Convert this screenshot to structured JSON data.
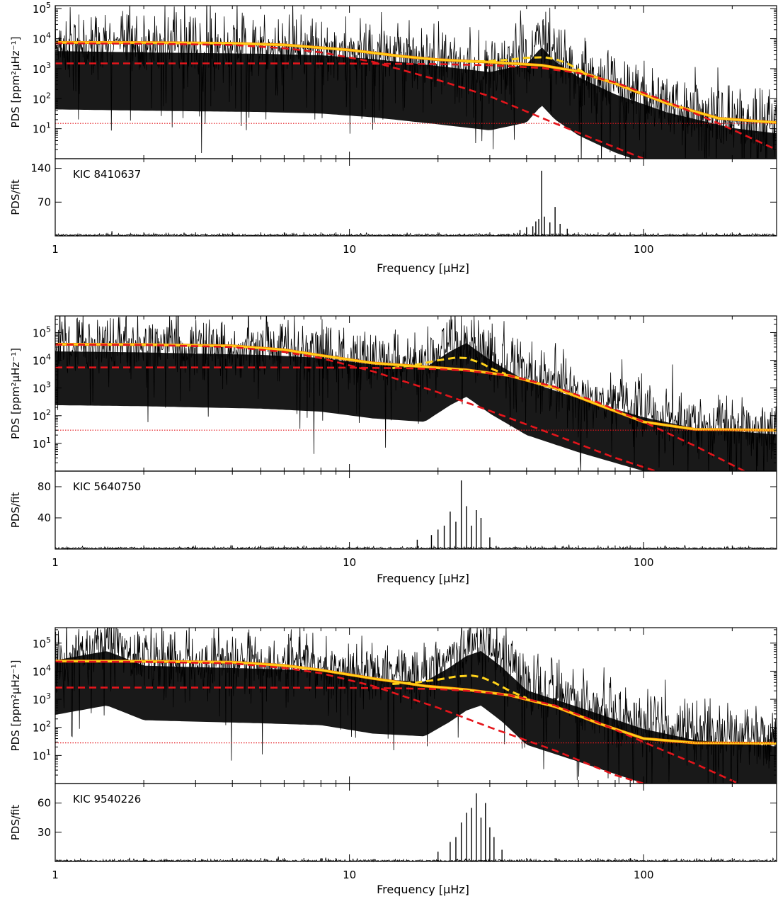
{
  "chart_data": [
    {
      "type": "line",
      "panel_label": "KIC 8410637",
      "xscale": "log",
      "xlim": [
        1,
        283
      ],
      "xticks": [
        "1",
        "10",
        "100"
      ],
      "xlabel": "Frequency [μHz]",
      "top": {
        "ylabel": "PDS [ppm²μHz⁻¹]",
        "yscale": "log",
        "ylim": [
          1,
          150000
        ],
        "yticks": [
          "10^1",
          "10^2",
          "10^3",
          "10^4",
          "10^5"
        ],
        "series": [
          {
            "style": "black-spectrum",
            "x": [
              1,
              2,
              3,
              5,
              8,
              12,
              20,
              30,
              40,
              45,
              50,
              60,
              80,
              120,
              200,
              283
            ],
            "y": [
              11000,
              10000,
              9500,
              9000,
              8000,
              6000,
              3500,
              2200,
              4000,
              15000,
              5000,
              1500,
              400,
              100,
              30,
              20
            ]
          },
          {
            "style": "yellow-solid",
            "x": [
              1,
              2,
              4,
              6,
              10,
              15,
              20,
              30,
              45,
              60,
              80,
              120,
              180,
              283
            ],
            "y": [
              7500,
              7400,
              7000,
              6200,
              4200,
              2600,
              2000,
              1650,
              1300,
              800,
              320,
              70,
              22,
              16
            ]
          },
          {
            "style": "yellow-dashed",
            "x": [
              25,
              30,
              35,
              40,
              46,
              50,
              55,
              60,
              65,
              70
            ],
            "y": [
              1700,
              1800,
              2000,
              2300,
              2400,
              2100,
              1500,
              950,
              600,
              450
            ]
          },
          {
            "style": "red-dashed",
            "x": [
              1,
              2,
              4,
              6,
              8,
              12,
              20,
              30,
              50,
              70,
              100
            ],
            "y": [
              7000,
              6800,
              6200,
              4800,
              3500,
              1700,
              420,
              120,
              15,
              4,
              1
            ]
          },
          {
            "style": "red-dashed",
            "x": [
              1,
              5,
              10,
              20,
              30,
              45,
              60,
              80,
              120,
              180,
              283
            ],
            "y": [
              1500,
              1500,
              1480,
              1420,
              1300,
              1050,
              720,
              350,
              80,
              15,
              2
            ]
          },
          {
            "style": "red-dotted",
            "x": [
              1,
              283
            ],
            "y": [
              15,
              15
            ]
          }
        ]
      },
      "bottom": {
        "ylabel": "PDS/fit",
        "ylim": [
          0,
          160
        ],
        "yticks": [
          "70",
          "140"
        ],
        "peaks": [
          {
            "x": 38,
            "y": 12
          },
          {
            "x": 40,
            "y": 18
          },
          {
            "x": 42,
            "y": 20
          },
          {
            "x": 43,
            "y": 30
          },
          {
            "x": 44,
            "y": 35
          },
          {
            "x": 45,
            "y": 135
          },
          {
            "x": 46,
            "y": 40
          },
          {
            "x": 48,
            "y": 28
          },
          {
            "x": 50,
            "y": 60
          },
          {
            "x": 52,
            "y": 25
          },
          {
            "x": 55,
            "y": 15
          }
        ]
      }
    },
    {
      "type": "line",
      "panel_label": "KIC 5640750",
      "xscale": "log",
      "xlim": [
        1,
        283
      ],
      "xticks": [
        "1",
        "10",
        "100"
      ],
      "xlabel": "Frequency [μHz]",
      "top": {
        "ylabel": "PDS [ppm²μHz⁻¹]",
        "yscale": "log",
        "ylim": [
          1,
          500000
        ],
        "yticks": [
          "10^1",
          "10^2",
          "10^3",
          "10^4",
          "10^5"
        ],
        "series": [
          {
            "style": "black-spectrum",
            "x": [
              1,
              2,
              3,
              5,
              8,
              12,
              18,
              22,
              25,
              30,
              40,
              60,
              100,
              150,
              283
            ],
            "y": [
              60000,
              55000,
              50000,
              45000,
              35000,
              20000,
              15000,
              60000,
              120000,
              30000,
              5000,
              1200,
              250,
              100,
              60
            ]
          },
          {
            "style": "yellow-solid",
            "x": [
              1,
              2,
              4,
              6,
              8,
              12,
              18,
              25,
              35,
              50,
              70,
              100,
              150,
              283
            ],
            "y": [
              38000,
              37000,
              33000,
              24000,
              15000,
              8000,
              5800,
              4500,
              2800,
              1000,
              250,
              60,
              32,
              30
            ]
          },
          {
            "style": "yellow-dashed",
            "x": [
              14,
              17,
              20,
              23,
              25,
              28,
              31,
              34
            ],
            "y": [
              5200,
              7000,
              10000,
              12500,
              12000,
              8000,
              4500,
              3200
            ]
          },
          {
            "style": "red-dashed",
            "x": [
              1,
              2,
              4,
              6,
              8,
              12,
              20,
              30,
              50,
              80,
              110
            ],
            "y": [
              37000,
              36000,
              30000,
              20000,
              12000,
              4000,
              700,
              150,
              20,
              3,
              1
            ]
          },
          {
            "style": "red-dashed",
            "x": [
              1,
              5,
              10,
              15,
              20,
              25,
              35,
              50,
              70,
              100,
              150,
              220
            ],
            "y": [
              5500,
              5500,
              5400,
              5200,
              4800,
              4200,
              2800,
              1100,
              300,
              60,
              8,
              1
            ]
          },
          {
            "style": "red-dotted",
            "x": [
              1,
              283
            ],
            "y": [
              30,
              30
            ]
          }
        ]
      },
      "bottom": {
        "ylabel": "PDS/fit",
        "ylim": [
          0,
          100
        ],
        "yticks": [
          "40",
          "80"
        ],
        "peaks": [
          {
            "x": 17,
            "y": 12
          },
          {
            "x": 19,
            "y": 18
          },
          {
            "x": 20,
            "y": 25
          },
          {
            "x": 21,
            "y": 30
          },
          {
            "x": 22,
            "y": 48
          },
          {
            "x": 23,
            "y": 35
          },
          {
            "x": 24,
            "y": 88
          },
          {
            "x": 25,
            "y": 55
          },
          {
            "x": 26,
            "y": 30
          },
          {
            "x": 27,
            "y": 50
          },
          {
            "x": 28,
            "y": 40
          },
          {
            "x": 30,
            "y": 15
          }
        ]
      }
    },
    {
      "type": "line",
      "panel_label": "KIC 9540226",
      "xscale": "log",
      "xlim": [
        1,
        283
      ],
      "xticks": [
        "1",
        "10",
        "100"
      ],
      "xlabel": "Frequency [μHz]",
      "top": {
        "ylabel": "PDS [ppm²μHz⁻¹]",
        "yscale": "log",
        "ylim": [
          1,
          400000
        ],
        "yticks": [
          "10^1",
          "10^2",
          "10^3",
          "10^4",
          "10^5"
        ],
        "series": [
          {
            "style": "black-spectrum",
            "x": [
              1,
              1.5,
              2,
              3,
              5,
              8,
              12,
              18,
              22,
              25,
              28,
              33,
              40,
              60,
              100,
              150,
              283
            ],
            "y": [
              70000,
              150000,
              45000,
              40000,
              35000,
              30000,
              15000,
              12000,
              40000,
              100000,
              150000,
              40000,
              6000,
              1500,
              250,
              100,
              60
            ]
          },
          {
            "style": "yellow-solid",
            "x": [
              1,
              2,
              4,
              6,
              8,
              12,
              18,
              25,
              35,
              50,
              70,
              100,
              150,
              283
            ],
            "y": [
              23000,
              22500,
              21000,
              16000,
              11000,
              5500,
              3000,
              2200,
              1400,
              550,
              140,
              40,
              28,
              27
            ]
          },
          {
            "style": "yellow-dashed",
            "x": [
              14,
              17,
              20,
              23,
              26,
              28,
              31,
              35,
              40
            ],
            "y": [
              3500,
              4000,
              5000,
              6500,
              7000,
              6200,
              4000,
              2000,
              1100
            ]
          },
          {
            "style": "red-dashed",
            "x": [
              1,
              2,
              4,
              6,
              8,
              12,
              20,
              30,
              50,
              80,
              100
            ],
            "y": [
              22000,
              21500,
              19000,
              13000,
              8500,
              3000,
              500,
              100,
              15,
              2,
              1
            ]
          },
          {
            "style": "red-dashed",
            "x": [
              1,
              5,
              10,
              15,
              20,
              25,
              35,
              50,
              70,
              100,
              150,
              210
            ],
            "y": [
              2600,
              2600,
              2550,
              2450,
              2300,
              2000,
              1400,
              600,
              150,
              30,
              5,
              1
            ]
          },
          {
            "style": "red-dotted",
            "x": [
              1,
              283
            ],
            "y": [
              28,
              28
            ]
          }
        ]
      },
      "bottom": {
        "ylabel": "PDS/fit",
        "ylim": [
          0,
          80
        ],
        "yticks": [
          "30",
          "60"
        ],
        "peaks": [
          {
            "x": 20,
            "y": 10
          },
          {
            "x": 22,
            "y": 20
          },
          {
            "x": 23,
            "y": 25
          },
          {
            "x": 24,
            "y": 40
          },
          {
            "x": 25,
            "y": 50
          },
          {
            "x": 26,
            "y": 55
          },
          {
            "x": 27,
            "y": 70
          },
          {
            "x": 28,
            "y": 45
          },
          {
            "x": 29,
            "y": 60
          },
          {
            "x": 30,
            "y": 35
          },
          {
            "x": 31,
            "y": 25
          },
          {
            "x": 33,
            "y": 12
          }
        ]
      }
    }
  ],
  "colors": {
    "spectrum": "#000000",
    "fit": "#ffd21a",
    "fit_underlay": "#ff8c00",
    "components": "#e4151b",
    "noise": "#e4151b"
  }
}
